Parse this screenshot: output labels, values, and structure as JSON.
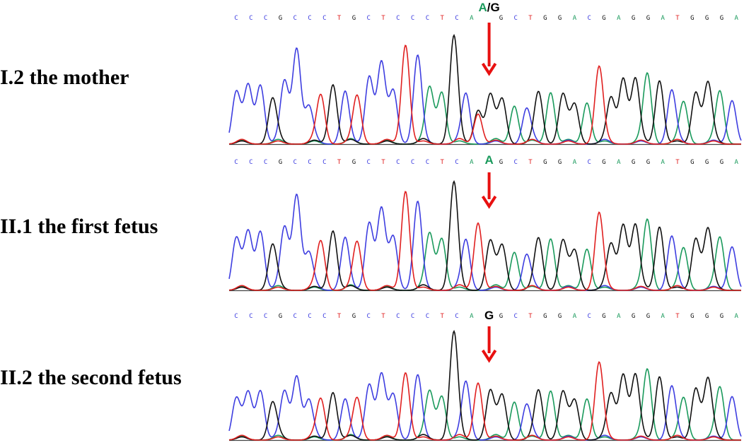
{
  "sequence": "CCCGCCCTGCTCCCTCAAGCTGGACGAGGATGGGA",
  "base_colors": {
    "A": "#1a9a5c",
    "C": "#3e3ee0",
    "G": "#111111",
    "T": "#e02020"
  },
  "arrow_color": "#e81010",
  "panels": [
    {
      "label": "I.2 the mother",
      "call": {
        "first": "A",
        "sep": "/",
        "second": "G"
      },
      "peaks": [
        0.63,
        0.72,
        0.74,
        0.55,
        0.78,
        1.2,
        0.45,
        0.6,
        0.75,
        0.65,
        0.6,
        0.85,
        1.0,
        0.65,
        1.25,
        1.1,
        0.7,
        0.65,
        1.35,
        0.62,
        0.38,
        0.6,
        0.55,
        0.48,
        0.42,
        0.65,
        0.65,
        0.6,
        0.48,
        0.52,
        0.95,
        0.57,
        0.82,
        0.8,
        0.87,
        0.8,
        0.65,
        0.52,
        0.65,
        0.75,
        0.65,
        0.55
      ]
    },
    {
      "label": "II.1 the first fetus",
      "call": {
        "first": "A",
        "sep": "",
        "second": ""
      },
      "peaks": [
        0.63,
        0.72,
        0.74,
        0.55,
        0.78,
        1.2,
        0.45,
        0.6,
        0.75,
        0.65,
        0.6,
        0.85,
        1.0,
        0.65,
        1.25,
        1.1,
        0.7,
        0.65,
        1.35,
        0.62,
        0.85,
        0.6,
        0.55,
        0.48,
        0.42,
        0.65,
        0.65,
        0.6,
        0.48,
        0.52,
        0.95,
        0.57,
        0.82,
        0.8,
        0.87,
        0.8,
        0.65,
        0.52,
        0.65,
        0.75,
        0.65,
        0.55
      ]
    },
    {
      "label": "II.2 the second fetus",
      "call": {
        "first": "",
        "sep": "",
        "second": "G"
      },
      "peaks": [
        0.5,
        0.58,
        0.62,
        0.45,
        0.6,
        0.8,
        0.48,
        0.5,
        0.6,
        0.5,
        0.52,
        0.7,
        0.8,
        0.55,
        0.85,
        0.8,
        0.6,
        0.55,
        1.35,
        0.72,
        0.72,
        0.6,
        0.55,
        0.48,
        0.42,
        0.62,
        0.62,
        0.58,
        0.48,
        0.52,
        0.95,
        0.57,
        0.82,
        0.8,
        0.87,
        0.8,
        0.65,
        0.52,
        0.65,
        0.75,
        0.65,
        0.55
      ]
    }
  ]
}
